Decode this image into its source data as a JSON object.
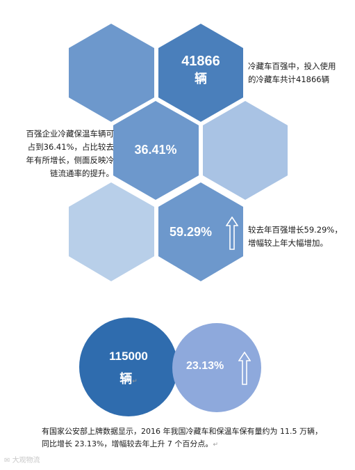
{
  "hex_section": {
    "hex1": {
      "value": "41866",
      "unit": "辆"
    },
    "hex2": {
      "value": "36.41%"
    },
    "hex3": {
      "value": "59.29%"
    },
    "note1": [
      "冷藏车百强中，投入使用",
      "的冷藏车共计41866辆"
    ],
    "note2": [
      "百强企业冷藏保温车辆可",
      "占到36.41%，占比较去",
      "年有所增长，侧面反映冷",
      "链流通率的提升。"
    ],
    "note3": [
      "较去年百强增长59.29%，",
      "增幅较上年大幅增加。"
    ]
  },
  "circle_section": {
    "big_value": "115000",
    "big_unit": "辆",
    "small_value": "23.13%",
    "caption": [
      "有国家公安部上牌数据显示，2016 年我国冷藏车和保温车保有量约为 11.5 万辆，",
      "同比增长 23.13%，增幅较去年上升 7 个百分点。"
    ],
    "return_mark": "↵"
  },
  "colors": {
    "hex_dark": "#4a7fbb",
    "hex_mid": "#6d98cc",
    "hex_light": "#a9c3e4",
    "hex_lighter": "#b8cfe9",
    "circle_dark": "#2f6cae",
    "circle_light": "#8ea9dc"
  },
  "watermark": "大观物流"
}
